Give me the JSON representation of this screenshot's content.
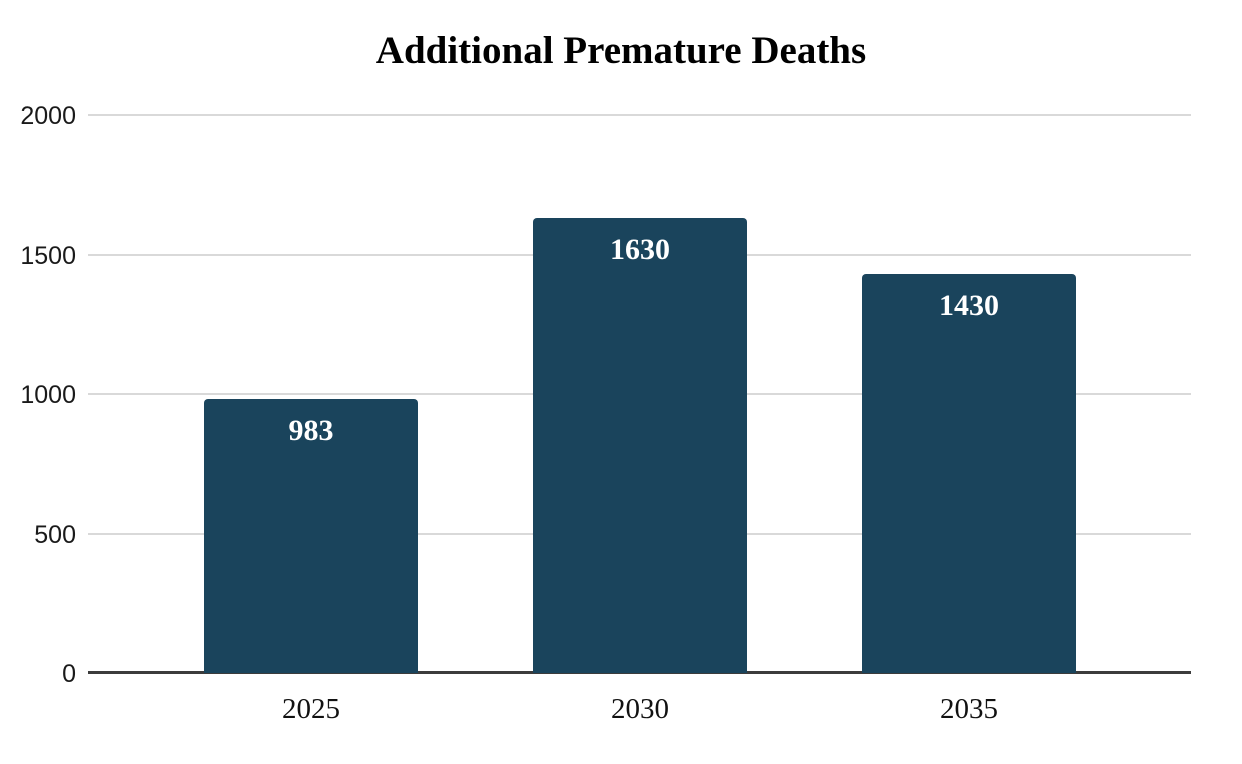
{
  "chart_data": {
    "type": "bar",
    "title": "Additional Premature Deaths",
    "categories": [
      "2025",
      "2030",
      "2035"
    ],
    "values": [
      983,
      1630,
      1430
    ],
    "bar_labels": [
      "983",
      "1630",
      "1430"
    ],
    "xlabel": "",
    "ylabel": "",
    "ylim": [
      0,
      2000
    ],
    "yticks": [
      0,
      500,
      1000,
      1500,
      2000
    ],
    "grid": true,
    "legend": false,
    "colors": {
      "bar": "#1a445c",
      "bar_value_label": "#ffffff",
      "gridline": "#d9d9d9",
      "axis_line": "#3c3c3c",
      "title_text": "#000000",
      "tick_text": "#1a1a1a",
      "background": "#ffffff"
    }
  }
}
